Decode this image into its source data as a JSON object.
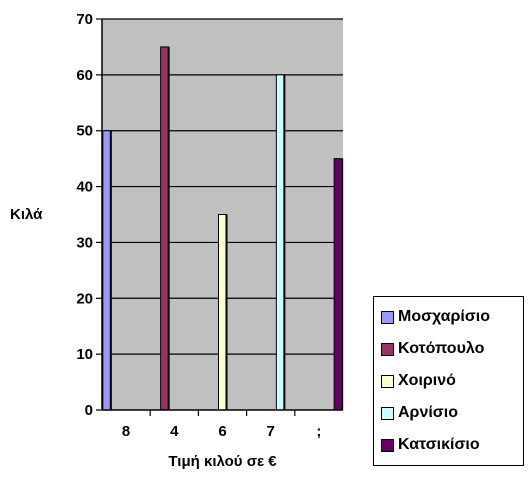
{
  "chart_data": {
    "type": "bar",
    "categories": [
      "8",
      "4",
      "6",
      "7",
      ";"
    ],
    "series": [
      {
        "name": "Μοσχαρίσιο",
        "color": "#9999ff",
        "values": [
          50,
          null,
          null,
          null,
          null
        ]
      },
      {
        "name": "Κοτόπουλο",
        "color": "#993366",
        "values": [
          null,
          65,
          null,
          null,
          null
        ]
      },
      {
        "name": "Χοιρινό",
        "color": "#ffffcc",
        "values": [
          null,
          null,
          35,
          null,
          null
        ]
      },
      {
        "name": "Αρνίσιο",
        "color": "#ccffff",
        "values": [
          null,
          null,
          null,
          60,
          null
        ]
      },
      {
        "name": "Κατσικίσιο",
        "color": "#660066",
        "values": [
          null,
          null,
          null,
          null,
          45
        ]
      }
    ],
    "yticks": [
      "0",
      "10",
      "20",
      "30",
      "40",
      "50",
      "60",
      "70"
    ],
    "xlabel": "Τιμή κιλού σε €",
    "ylabel": "Κιλά",
    "ylim": [
      0,
      70
    ],
    "plot_background": "#c0c0c0",
    "grid": true,
    "legend_position": "bottom-right"
  }
}
